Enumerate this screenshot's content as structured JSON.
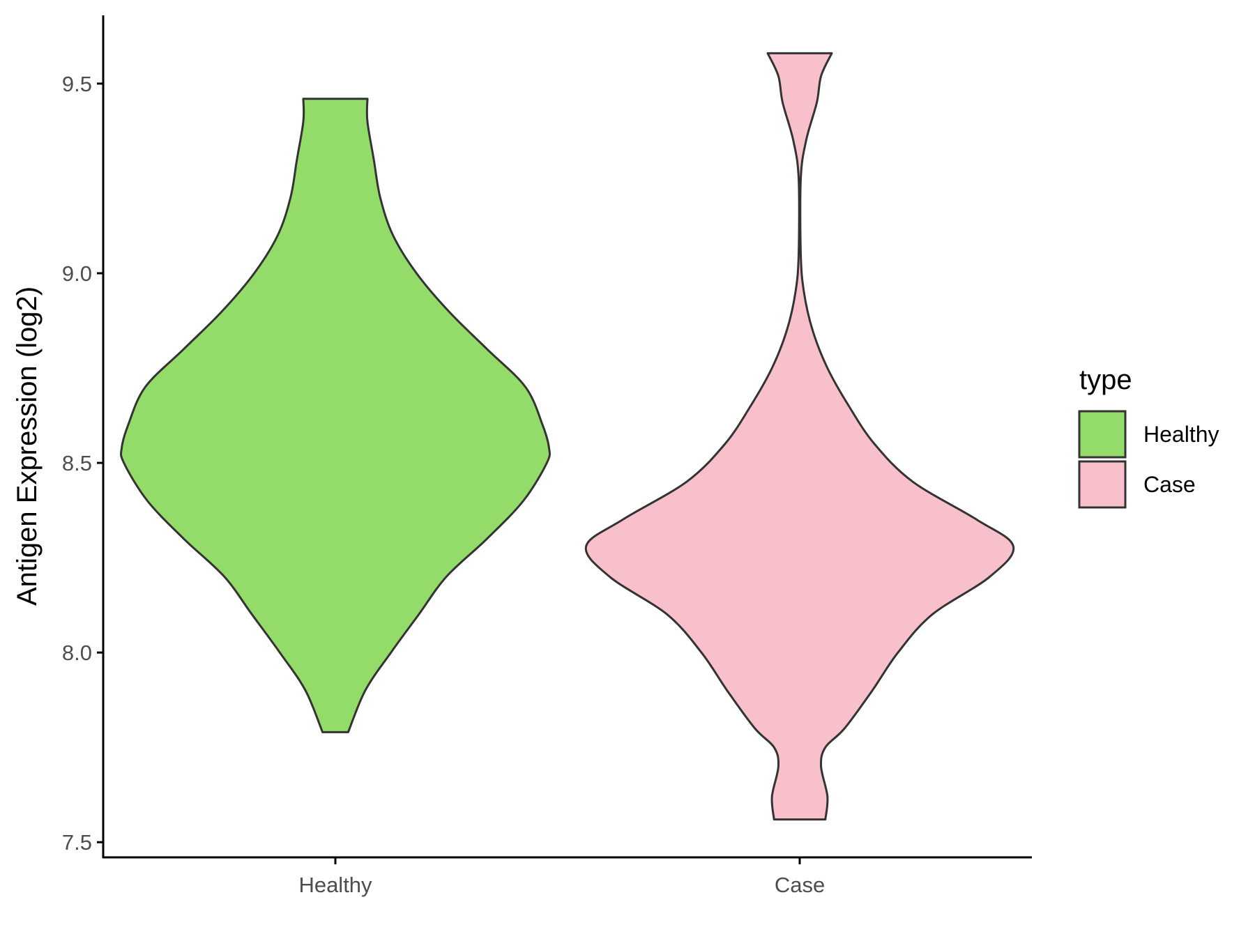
{
  "chart_data": {
    "type": "violin",
    "ylabel": "Antigen Expression (log2)",
    "ylim": [
      7.46,
      9.68
    ],
    "y_ticks": [
      "7.5",
      "8.0",
      "8.5",
      "9.0",
      "9.5"
    ],
    "categories": [
      "Healthy",
      "Case"
    ],
    "grid": false,
    "legend": {
      "title": "type",
      "position": "right",
      "entries": [
        {
          "label": "Healthy",
          "color": "#93dc6a"
        },
        {
          "label": "Case",
          "color": "#f8c0cb"
        }
      ]
    },
    "series": [
      {
        "category": "Healthy",
        "color": "#93dc6a",
        "min": 7.79,
        "max": 9.46,
        "density": [
          [
            7.79,
            0.06
          ],
          [
            7.9,
            0.14
          ],
          [
            8.0,
            0.26
          ],
          [
            8.1,
            0.39
          ],
          [
            8.2,
            0.52
          ],
          [
            8.3,
            0.71
          ],
          [
            8.4,
            0.88
          ],
          [
            8.5,
            0.99
          ],
          [
            8.54,
            1.0
          ],
          [
            8.6,
            0.97
          ],
          [
            8.7,
            0.89
          ],
          [
            8.8,
            0.71
          ],
          [
            8.9,
            0.53
          ],
          [
            9.0,
            0.38
          ],
          [
            9.1,
            0.27
          ],
          [
            9.2,
            0.21
          ],
          [
            9.3,
            0.18
          ],
          [
            9.4,
            0.15
          ],
          [
            9.46,
            0.15
          ]
        ]
      },
      {
        "category": "Case",
        "color": "#f8c0cb",
        "min": 7.56,
        "max": 9.58,
        "density": [
          [
            7.56,
            0.12
          ],
          [
            7.62,
            0.13
          ],
          [
            7.7,
            0.1
          ],
          [
            7.75,
            0.12
          ],
          [
            7.8,
            0.21
          ],
          [
            7.9,
            0.34
          ],
          [
            8.0,
            0.46
          ],
          [
            8.1,
            0.62
          ],
          [
            8.2,
            0.89
          ],
          [
            8.28,
            1.0
          ],
          [
            8.35,
            0.83
          ],
          [
            8.45,
            0.53
          ],
          [
            8.55,
            0.35
          ],
          [
            8.65,
            0.23
          ],
          [
            8.75,
            0.13
          ],
          [
            8.85,
            0.06
          ],
          [
            8.95,
            0.02
          ],
          [
            9.05,
            0.005
          ],
          [
            9.25,
            0.005
          ],
          [
            9.35,
            0.03
          ],
          [
            9.45,
            0.08
          ],
          [
            9.52,
            0.1
          ],
          [
            9.58,
            0.15
          ]
        ]
      }
    ]
  }
}
